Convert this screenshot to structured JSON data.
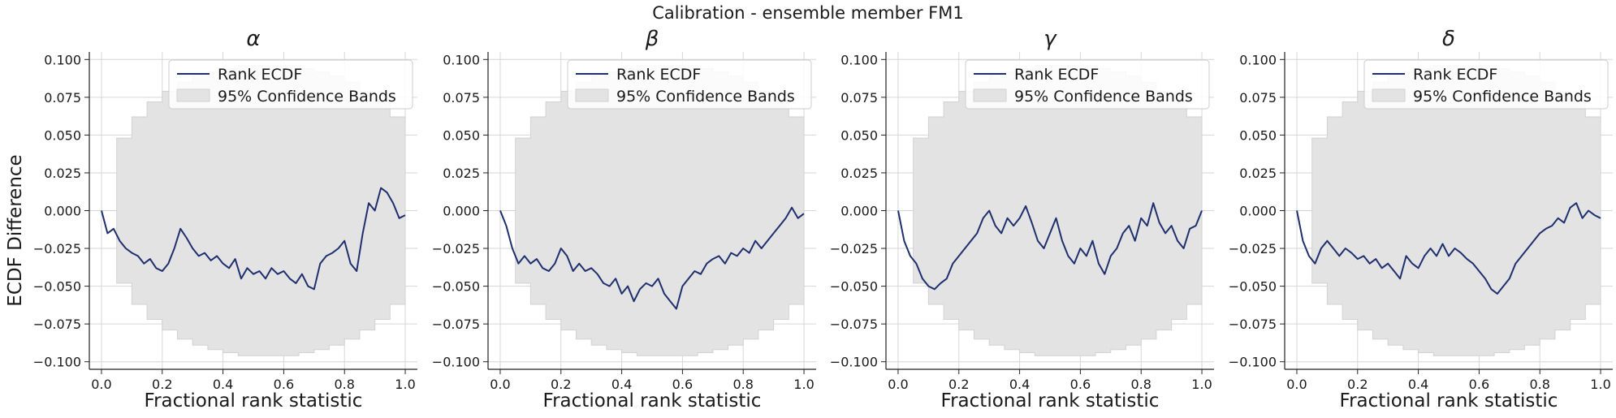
{
  "figure": {
    "suptitle": "Calibration - ensemble member FM1",
    "ylabel": "ECDF Difference"
  },
  "colors": {
    "line": "#1f2f6e",
    "band": "#e3e3e3",
    "grid": "#d6d6d6",
    "axis": "#222222"
  },
  "chart_data": [
    {
      "type": "line",
      "title": "α",
      "xlabel": "Fractional rank statistic",
      "ylabel": "ECDF Difference",
      "xlim": [
        -0.04,
        1.04
      ],
      "ylim": [
        -0.105,
        0.105
      ],
      "xticks": [
        0.0,
        0.2,
        0.4,
        0.6,
        0.8,
        1.0
      ],
      "xtick_labels": [
        "0.0",
        "0.2",
        "0.4",
        "0.6",
        "0.8",
        "1.0"
      ],
      "yticks": [
        -0.1,
        -0.075,
        -0.05,
        -0.025,
        0.0,
        0.025,
        0.05,
        0.075,
        0.1
      ],
      "ytick_labels": [
        "−0.100",
        "−0.075",
        "−0.050",
        "−0.025",
        "0.000",
        "0.025",
        "0.050",
        "0.075",
        "0.100"
      ],
      "grid": true,
      "legend": {
        "position": "top-right",
        "entries": [
          "Rank ECDF",
          "95% Confidence Bands"
        ]
      },
      "series": [
        {
          "name": "Rank ECDF",
          "x": [
            0.0,
            0.02,
            0.04,
            0.06,
            0.08,
            0.1,
            0.12,
            0.14,
            0.16,
            0.18,
            0.2,
            0.22,
            0.24,
            0.26,
            0.28,
            0.3,
            0.32,
            0.34,
            0.36,
            0.38,
            0.4,
            0.42,
            0.44,
            0.46,
            0.48,
            0.5,
            0.52,
            0.54,
            0.56,
            0.58,
            0.6,
            0.62,
            0.64,
            0.66,
            0.68,
            0.7,
            0.72,
            0.74,
            0.76,
            0.78,
            0.8,
            0.82,
            0.84,
            0.86,
            0.88,
            0.9,
            0.92,
            0.94,
            0.96,
            0.98,
            1.0
          ],
          "y": [
            0.0,
            -0.015,
            -0.012,
            -0.02,
            -0.025,
            -0.028,
            -0.03,
            -0.035,
            -0.032,
            -0.038,
            -0.04,
            -0.035,
            -0.025,
            -0.012,
            -0.018,
            -0.025,
            -0.03,
            -0.028,
            -0.033,
            -0.03,
            -0.035,
            -0.038,
            -0.032,
            -0.045,
            -0.038,
            -0.042,
            -0.04,
            -0.045,
            -0.038,
            -0.042,
            -0.04,
            -0.045,
            -0.048,
            -0.042,
            -0.05,
            -0.052,
            -0.035,
            -0.03,
            -0.028,
            -0.025,
            -0.02,
            -0.035,
            -0.04,
            -0.015,
            0.005,
            0.0,
            0.015,
            0.012,
            0.005,
            -0.005,
            -0.003
          ]
        },
        {
          "name": "95% Confidence Bands",
          "x": [
            0.0,
            0.05,
            0.1,
            0.15,
            0.2,
            0.25,
            0.3,
            0.35,
            0.4,
            0.45,
            0.5,
            0.55,
            0.6,
            0.65,
            0.7,
            0.75,
            0.8,
            0.85,
            0.9,
            0.95,
            1.0
          ],
          "lower": [
            0.0,
            -0.048,
            -0.062,
            -0.072,
            -0.079,
            -0.085,
            -0.089,
            -0.092,
            -0.094,
            -0.096,
            -0.096,
            -0.096,
            -0.096,
            -0.094,
            -0.092,
            -0.089,
            -0.085,
            -0.079,
            -0.072,
            -0.062,
            -0.048
          ],
          "upper": [
            0.0,
            0.048,
            0.062,
            0.072,
            0.079,
            0.085,
            0.089,
            0.092,
            0.094,
            0.096,
            0.096,
            0.096,
            0.096,
            0.094,
            0.092,
            0.089,
            0.085,
            0.079,
            0.072,
            0.062,
            0.048
          ]
        }
      ]
    },
    {
      "type": "line",
      "title": "β",
      "xlabel": "Fractional rank statistic",
      "xlim": [
        -0.04,
        1.04
      ],
      "ylim": [
        -0.105,
        0.105
      ],
      "xticks": [
        0.0,
        0.2,
        0.4,
        0.6,
        0.8,
        1.0
      ],
      "xtick_labels": [
        "0.0",
        "0.2",
        "0.4",
        "0.6",
        "0.8",
        "1.0"
      ],
      "yticks": [
        -0.1,
        -0.075,
        -0.05,
        -0.025,
        0.0,
        0.025,
        0.05,
        0.075,
        0.1
      ],
      "ytick_labels": [
        "−0.100",
        "−0.075",
        "−0.050",
        "−0.025",
        "0.000",
        "0.025",
        "0.050",
        "0.075",
        "0.100"
      ],
      "grid": true,
      "legend": {
        "position": "top-right",
        "entries": [
          "Rank ECDF",
          "95% Confidence Bands"
        ]
      },
      "series": [
        {
          "name": "Rank ECDF",
          "x": [
            0.0,
            0.02,
            0.04,
            0.06,
            0.08,
            0.1,
            0.12,
            0.14,
            0.16,
            0.18,
            0.2,
            0.22,
            0.24,
            0.26,
            0.28,
            0.3,
            0.32,
            0.34,
            0.36,
            0.38,
            0.4,
            0.42,
            0.44,
            0.46,
            0.48,
            0.5,
            0.52,
            0.54,
            0.56,
            0.58,
            0.6,
            0.62,
            0.64,
            0.66,
            0.68,
            0.7,
            0.72,
            0.74,
            0.76,
            0.78,
            0.8,
            0.82,
            0.84,
            0.86,
            0.88,
            0.9,
            0.92,
            0.94,
            0.96,
            0.98,
            1.0
          ],
          "y": [
            0.0,
            -0.01,
            -0.025,
            -0.035,
            -0.03,
            -0.035,
            -0.032,
            -0.038,
            -0.04,
            -0.035,
            -0.025,
            -0.03,
            -0.04,
            -0.035,
            -0.04,
            -0.038,
            -0.042,
            -0.048,
            -0.05,
            -0.045,
            -0.055,
            -0.05,
            -0.06,
            -0.052,
            -0.048,
            -0.05,
            -0.045,
            -0.055,
            -0.06,
            -0.065,
            -0.05,
            -0.045,
            -0.04,
            -0.042,
            -0.035,
            -0.032,
            -0.03,
            -0.035,
            -0.028,
            -0.03,
            -0.025,
            -0.028,
            -0.02,
            -0.025,
            -0.02,
            -0.015,
            -0.01,
            -0.005,
            0.002,
            -0.005,
            -0.002
          ]
        },
        {
          "name": "95% Confidence Bands",
          "x": [
            0.0,
            0.05,
            0.1,
            0.15,
            0.2,
            0.25,
            0.3,
            0.35,
            0.4,
            0.45,
            0.5,
            0.55,
            0.6,
            0.65,
            0.7,
            0.75,
            0.8,
            0.85,
            0.9,
            0.95,
            1.0
          ],
          "lower": [
            0.0,
            -0.048,
            -0.062,
            -0.072,
            -0.079,
            -0.085,
            -0.089,
            -0.092,
            -0.094,
            -0.096,
            -0.096,
            -0.096,
            -0.096,
            -0.094,
            -0.092,
            -0.089,
            -0.085,
            -0.079,
            -0.072,
            -0.062,
            -0.048
          ],
          "upper": [
            0.0,
            0.048,
            0.062,
            0.072,
            0.079,
            0.085,
            0.089,
            0.092,
            0.094,
            0.096,
            0.096,
            0.096,
            0.096,
            0.094,
            0.092,
            0.089,
            0.085,
            0.079,
            0.072,
            0.062,
            0.048
          ]
        }
      ]
    },
    {
      "type": "line",
      "title": "γ",
      "xlabel": "Fractional rank statistic",
      "xlim": [
        -0.04,
        1.04
      ],
      "ylim": [
        -0.105,
        0.105
      ],
      "xticks": [
        0.0,
        0.2,
        0.4,
        0.6,
        0.8,
        1.0
      ],
      "xtick_labels": [
        "0.0",
        "0.2",
        "0.4",
        "0.6",
        "0.8",
        "1.0"
      ],
      "yticks": [
        -0.1,
        -0.075,
        -0.05,
        -0.025,
        0.0,
        0.025,
        0.05,
        0.075,
        0.1
      ],
      "ytick_labels": [
        "−0.100",
        "−0.075",
        "−0.050",
        "−0.025",
        "0.000",
        "0.025",
        "0.050",
        "0.075",
        "0.100"
      ],
      "grid": true,
      "legend": {
        "position": "top-right",
        "entries": [
          "Rank ECDF",
          "95% Confidence Bands"
        ]
      },
      "series": [
        {
          "name": "Rank ECDF",
          "x": [
            0.0,
            0.02,
            0.04,
            0.06,
            0.08,
            0.1,
            0.12,
            0.14,
            0.16,
            0.18,
            0.2,
            0.22,
            0.24,
            0.26,
            0.28,
            0.3,
            0.32,
            0.34,
            0.36,
            0.38,
            0.4,
            0.42,
            0.44,
            0.46,
            0.48,
            0.5,
            0.52,
            0.54,
            0.56,
            0.58,
            0.6,
            0.62,
            0.64,
            0.66,
            0.68,
            0.7,
            0.72,
            0.74,
            0.76,
            0.78,
            0.8,
            0.82,
            0.84,
            0.86,
            0.88,
            0.9,
            0.92,
            0.94,
            0.96,
            0.98,
            1.0
          ],
          "y": [
            0.0,
            -0.02,
            -0.03,
            -0.035,
            -0.045,
            -0.05,
            -0.052,
            -0.048,
            -0.045,
            -0.035,
            -0.03,
            -0.025,
            -0.02,
            -0.015,
            -0.005,
            0.0,
            -0.01,
            -0.015,
            -0.005,
            -0.01,
            -0.005,
            0.003,
            -0.008,
            -0.02,
            -0.025,
            -0.015,
            -0.005,
            -0.02,
            -0.03,
            -0.035,
            -0.025,
            -0.03,
            -0.02,
            -0.035,
            -0.042,
            -0.03,
            -0.025,
            -0.015,
            -0.01,
            -0.02,
            -0.005,
            -0.01,
            0.005,
            -0.008,
            -0.015,
            -0.01,
            -0.02,
            -0.025,
            -0.012,
            -0.01,
            0.0
          ]
        },
        {
          "name": "95% Confidence Bands",
          "x": [
            0.0,
            0.05,
            0.1,
            0.15,
            0.2,
            0.25,
            0.3,
            0.35,
            0.4,
            0.45,
            0.5,
            0.55,
            0.6,
            0.65,
            0.7,
            0.75,
            0.8,
            0.85,
            0.9,
            0.95,
            1.0
          ],
          "lower": [
            0.0,
            -0.048,
            -0.062,
            -0.072,
            -0.079,
            -0.085,
            -0.089,
            -0.092,
            -0.094,
            -0.096,
            -0.096,
            -0.096,
            -0.096,
            -0.094,
            -0.092,
            -0.089,
            -0.085,
            -0.079,
            -0.072,
            -0.062,
            -0.048
          ],
          "upper": [
            0.0,
            0.048,
            0.062,
            0.072,
            0.079,
            0.085,
            0.089,
            0.092,
            0.094,
            0.096,
            0.096,
            0.096,
            0.096,
            0.094,
            0.092,
            0.089,
            0.085,
            0.079,
            0.072,
            0.062,
            0.048
          ]
        }
      ]
    },
    {
      "type": "line",
      "title": "δ",
      "xlabel": "Fractional rank statistic",
      "xlim": [
        -0.04,
        1.04
      ],
      "ylim": [
        -0.105,
        0.105
      ],
      "xticks": [
        0.0,
        0.2,
        0.4,
        0.6,
        0.8,
        1.0
      ],
      "xtick_labels": [
        "0.0",
        "0.2",
        "0.4",
        "0.6",
        "0.8",
        "1.0"
      ],
      "yticks": [
        -0.1,
        -0.075,
        -0.05,
        -0.025,
        0.0,
        0.025,
        0.05,
        0.075,
        0.1
      ],
      "ytick_labels": [
        "−0.100",
        "−0.075",
        "−0.050",
        "−0.025",
        "0.000",
        "0.025",
        "0.050",
        "0.075",
        "0.100"
      ],
      "grid": true,
      "legend": {
        "position": "top-right",
        "entries": [
          "Rank ECDF",
          "95% Confidence Bands"
        ]
      },
      "series": [
        {
          "name": "Rank ECDF",
          "x": [
            0.0,
            0.02,
            0.04,
            0.06,
            0.08,
            0.1,
            0.12,
            0.14,
            0.16,
            0.18,
            0.2,
            0.22,
            0.24,
            0.26,
            0.28,
            0.3,
            0.32,
            0.34,
            0.36,
            0.38,
            0.4,
            0.42,
            0.44,
            0.46,
            0.48,
            0.5,
            0.52,
            0.54,
            0.56,
            0.58,
            0.6,
            0.62,
            0.64,
            0.66,
            0.68,
            0.7,
            0.72,
            0.74,
            0.76,
            0.78,
            0.8,
            0.82,
            0.84,
            0.86,
            0.88,
            0.9,
            0.92,
            0.94,
            0.96,
            0.98,
            1.0
          ],
          "y": [
            0.0,
            -0.02,
            -0.03,
            -0.035,
            -0.025,
            -0.02,
            -0.025,
            -0.03,
            -0.025,
            -0.028,
            -0.032,
            -0.03,
            -0.035,
            -0.032,
            -0.038,
            -0.035,
            -0.04,
            -0.045,
            -0.03,
            -0.035,
            -0.038,
            -0.03,
            -0.025,
            -0.03,
            -0.022,
            -0.03,
            -0.025,
            -0.028,
            -0.032,
            -0.035,
            -0.04,
            -0.045,
            -0.052,
            -0.055,
            -0.05,
            -0.045,
            -0.035,
            -0.03,
            -0.025,
            -0.02,
            -0.015,
            -0.012,
            -0.01,
            -0.005,
            -0.008,
            0.002,
            0.005,
            -0.005,
            0.0,
            -0.003,
            -0.005
          ]
        },
        {
          "name": "95% Confidence Bands",
          "x": [
            0.0,
            0.05,
            0.1,
            0.15,
            0.2,
            0.25,
            0.3,
            0.35,
            0.4,
            0.45,
            0.5,
            0.55,
            0.6,
            0.65,
            0.7,
            0.75,
            0.8,
            0.85,
            0.9,
            0.95,
            1.0
          ],
          "lower": [
            0.0,
            -0.048,
            -0.062,
            -0.072,
            -0.079,
            -0.085,
            -0.089,
            -0.092,
            -0.094,
            -0.096,
            -0.096,
            -0.096,
            -0.096,
            -0.094,
            -0.092,
            -0.089,
            -0.085,
            -0.079,
            -0.072,
            -0.062,
            -0.048
          ],
          "upper": [
            0.0,
            0.048,
            0.062,
            0.072,
            0.079,
            0.085,
            0.089,
            0.092,
            0.094,
            0.096,
            0.096,
            0.096,
            0.096,
            0.094,
            0.092,
            0.089,
            0.085,
            0.079,
            0.072,
            0.062,
            0.048
          ]
        }
      ]
    }
  ]
}
